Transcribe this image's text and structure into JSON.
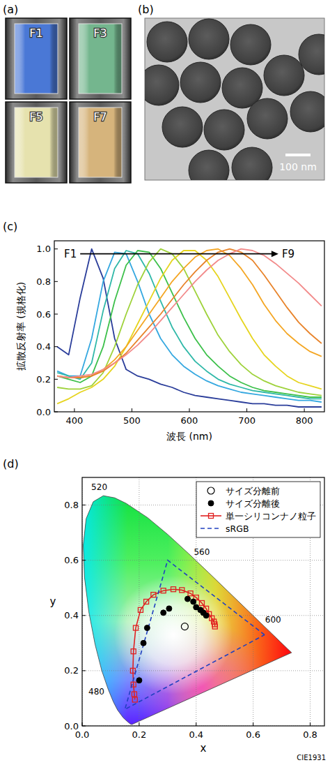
{
  "panel_labels": [
    "(a)",
    "(b)",
    "(c)",
    "(d)"
  ],
  "photos": {
    "labels": [
      "F1",
      "F3",
      "F5",
      "F7"
    ],
    "colors": [
      "#4a78d6",
      "#74b68e",
      "#e6e2ae",
      "#d6b47c"
    ]
  },
  "tem": {
    "scale_bar": "100 nm"
  },
  "chart_data": [
    {
      "type": "line",
      "x_label": "波長 (nm)",
      "y_label": "拡散反射率 (規格化)",
      "xlim": [
        365,
        835
      ],
      "ylim": [
        0,
        1.05
      ],
      "xticks": [
        400,
        500,
        600,
        700,
        800
      ],
      "yticks": [
        {
          "value": 0,
          "label": "0.0"
        },
        0.2,
        0.4,
        0.6,
        0.8,
        {
          "value": 1,
          "label": "1.0"
        }
      ],
      "grid": false,
      "x": [
        370,
        390,
        410,
        430,
        450,
        470,
        490,
        510,
        530,
        550,
        570,
        590,
        610,
        630,
        650,
        670,
        690,
        710,
        730,
        750,
        770,
        790,
        810,
        830
      ],
      "series": [
        {
          "color": "#2a3d9a",
          "values": [
            0.4,
            0.35,
            0.7,
            1.0,
            0.82,
            0.45,
            0.26,
            0.22,
            0.2,
            0.17,
            0.15,
            0.12,
            0.1,
            0.09,
            0.08,
            0.07,
            0.06,
            0.05,
            0.05,
            0.04,
            0.04,
            0.03,
            0.03,
            0.03
          ]
        },
        {
          "color": "#35a8e0",
          "values": [
            0.25,
            0.22,
            0.22,
            0.45,
            0.8,
            0.98,
            0.97,
            0.8,
            0.6,
            0.45,
            0.35,
            0.28,
            0.23,
            0.19,
            0.16,
            0.14,
            0.12,
            0.11,
            0.1,
            0.09,
            0.08,
            0.07,
            0.07,
            0.06
          ]
        },
        {
          "color": "#2fb8a8",
          "values": [
            0.24,
            0.22,
            0.2,
            0.3,
            0.62,
            0.88,
            0.99,
            0.97,
            0.85,
            0.68,
            0.52,
            0.4,
            0.31,
            0.25,
            0.2,
            0.17,
            0.15,
            0.13,
            0.12,
            0.11,
            0.1,
            0.09,
            0.08,
            0.08
          ]
        },
        {
          "color": "#3cc04a",
          "values": [
            0.22,
            0.2,
            0.18,
            0.22,
            0.4,
            0.68,
            0.9,
            0.99,
            0.98,
            0.88,
            0.73,
            0.58,
            0.45,
            0.35,
            0.28,
            0.22,
            0.18,
            0.15,
            0.13,
            0.12,
            0.11,
            0.1,
            0.09,
            0.09
          ]
        },
        {
          "color": "#9ed23a",
          "values": [
            0.15,
            0.14,
            0.14,
            0.16,
            0.24,
            0.4,
            0.6,
            0.78,
            0.92,
            1.0,
            0.97,
            0.88,
            0.74,
            0.6,
            0.47,
            0.37,
            0.29,
            0.23,
            0.19,
            0.16,
            0.14,
            0.12,
            0.11,
            0.1
          ]
        },
        {
          "color": "#e6d41e",
          "values": [
            0.05,
            0.08,
            0.12,
            0.15,
            0.2,
            0.28,
            0.4,
            0.54,
            0.68,
            0.82,
            0.93,
            0.99,
            0.99,
            0.93,
            0.83,
            0.7,
            0.57,
            0.45,
            0.35,
            0.28,
            0.22,
            0.18,
            0.16,
            0.14
          ]
        },
        {
          "color": "#f4a623",
          "values": [
            0.22,
            0.21,
            0.21,
            0.22,
            0.26,
            0.32,
            0.4,
            0.5,
            0.6,
            0.7,
            0.8,
            0.88,
            0.95,
            0.99,
            1.0,
            0.96,
            0.88,
            0.78,
            0.66,
            0.56,
            0.48,
            0.42,
            0.37,
            0.34
          ]
        },
        {
          "color": "#e8832a",
          "values": [
            0.22,
            0.21,
            0.21,
            0.22,
            0.25,
            0.3,
            0.36,
            0.44,
            0.52,
            0.6,
            0.69,
            0.78,
            0.86,
            0.93,
            0.98,
            1.0,
            0.98,
            0.93,
            0.84,
            0.74,
            0.64,
            0.55,
            0.48,
            0.42
          ]
        },
        {
          "color": "#f28a8a",
          "values": [
            0.22,
            0.21,
            0.22,
            0.23,
            0.26,
            0.3,
            0.35,
            0.41,
            0.48,
            0.56,
            0.64,
            0.72,
            0.8,
            0.87,
            0.93,
            0.97,
            1.0,
            0.99,
            0.96,
            0.91,
            0.85,
            0.79,
            0.72,
            0.65
          ]
        }
      ],
      "annotations": [
        {
          "text": "F1",
          "x": 393,
          "y": 0.97
        },
        {
          "text": "F9",
          "x": 772,
          "y": 0.97
        }
      ]
    },
    {
      "type": "scatter",
      "x_label": "x",
      "y_label": "y",
      "xlim": [
        0,
        0.85
      ],
      "ylim": [
        0,
        0.9
      ],
      "xticks": [
        {
          "value": 0,
          "label": "0.0"
        },
        0.2,
        0.4,
        0.6,
        0.8
      ],
      "yticks": [
        {
          "value": 0,
          "label": "0.0"
        },
        0.2,
        0.4,
        0.6,
        0.8
      ],
      "grid": true,
      "legend": "top-right",
      "footnote": "CIE1931",
      "spectral_locus": {
        "x": [
          0.1741,
          0.1689,
          0.1644,
          0.1566,
          0.144,
          0.1241,
          0.1096,
          0.0913,
          0.0687,
          0.0454,
          0.0235,
          0.0082,
          0.0039,
          0.0139,
          0.0389,
          0.0743,
          0.1142,
          0.1547,
          0.2296,
          0.3016,
          0.3731,
          0.4441,
          0.5125,
          0.5752,
          0.627,
          0.6658,
          0.6915,
          0.719,
          0.7347
        ],
        "y": [
          0.005,
          0.0069,
          0.0109,
          0.0177,
          0.0297,
          0.0578,
          0.0868,
          0.1327,
          0.2007,
          0.295,
          0.4127,
          0.5384,
          0.6548,
          0.7502,
          0.812,
          0.8338,
          0.8262,
          0.8059,
          0.7543,
          0.6923,
          0.6245,
          0.5547,
          0.4866,
          0.4242,
          0.3725,
          0.334,
          0.3083,
          0.2809,
          0.2653
        ]
      },
      "wavelength_labels": [
        {
          "label": "520",
          "x": 0.06,
          "y": 0.865
        },
        {
          "label": "560",
          "x": 0.42,
          "y": 0.63
        },
        {
          "label": "600",
          "x": 0.67,
          "y": 0.385
        },
        {
          "label": "480",
          "x": 0.05,
          "y": 0.125
        }
      ],
      "series": [
        {
          "name": "サイズ分離前",
          "type": "scatter",
          "marker": "open-circle",
          "color": "#000000",
          "x": [
            0.36
          ],
          "values": [
            0.36
          ]
        },
        {
          "name": "サイズ分離後",
          "type": "scatter",
          "marker": "circle",
          "color": "#000000",
          "x": [
            0.2,
            0.215,
            0.228,
            0.285,
            0.305,
            0.37,
            0.39,
            0.4,
            0.415,
            0.425,
            0.435
          ],
          "values": [
            0.165,
            0.3,
            0.355,
            0.41,
            0.425,
            0.46,
            0.45,
            0.43,
            0.42,
            0.41,
            0.4
          ]
        },
        {
          "name": "単一シリコンナノ粒子",
          "type": "line",
          "marker": "open-square",
          "color": "#e02020",
          "x": [
            0.185,
            0.183,
            0.18,
            0.178,
            0.18,
            0.188,
            0.205,
            0.225,
            0.25,
            0.285,
            0.32,
            0.35,
            0.38,
            0.4,
            0.42,
            0.435,
            0.445,
            0.455,
            0.462,
            0.465,
            0.466
          ],
          "values": [
            0.095,
            0.115,
            0.15,
            0.2,
            0.27,
            0.355,
            0.42,
            0.45,
            0.475,
            0.49,
            0.495,
            0.492,
            0.48,
            0.465,
            0.445,
            0.425,
            0.405,
            0.39,
            0.378,
            0.368,
            0.36
          ]
        },
        {
          "name": "sRGB",
          "type": "line",
          "line_style": "dashed",
          "color": "#2040c0",
          "x": [
            0.64,
            0.3,
            0.15,
            0.64
          ],
          "values": [
            0.33,
            0.6,
            0.06,
            0.33
          ]
        }
      ]
    }
  ]
}
